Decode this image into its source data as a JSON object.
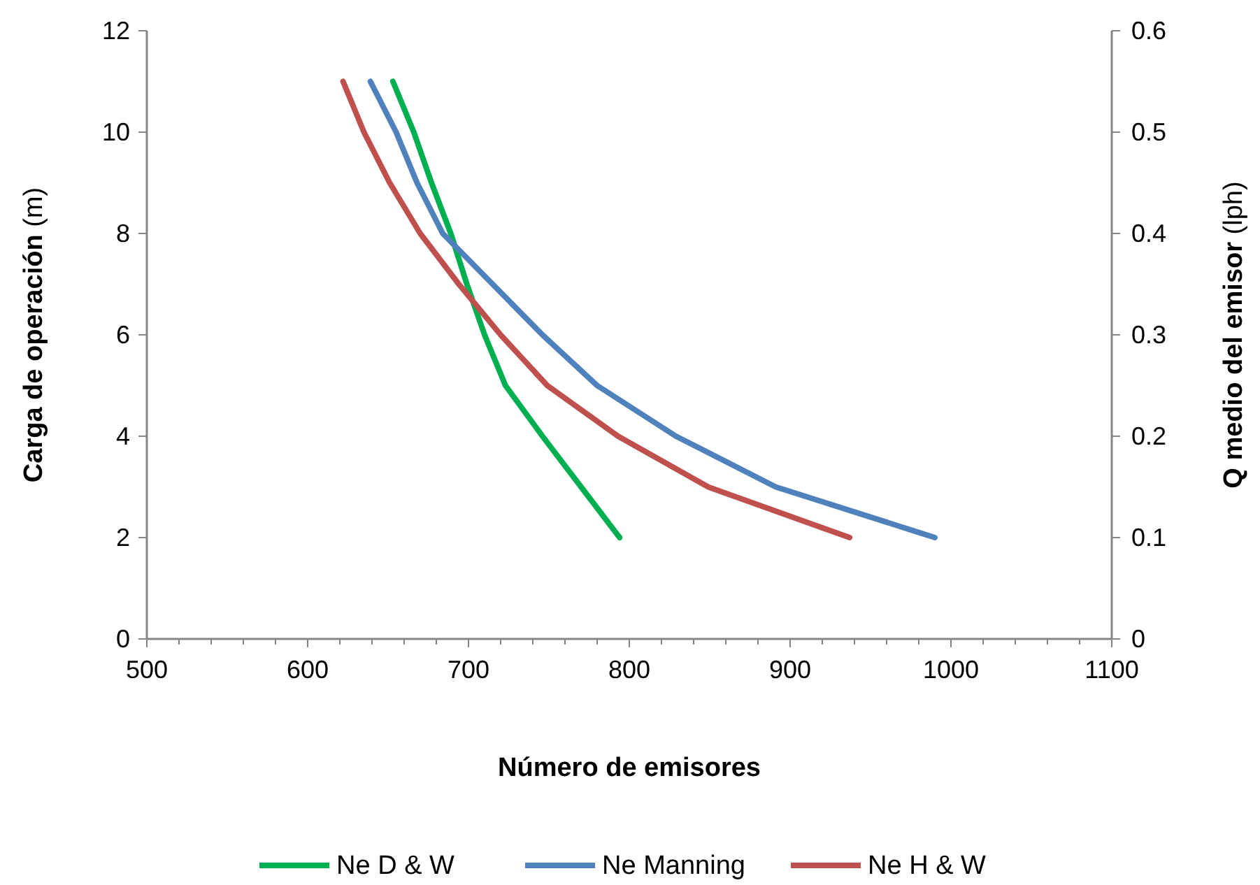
{
  "chart_data": {
    "type": "line",
    "xlabel": "Número de emisores",
    "ylabel": "Carga de operación (m)",
    "y2label": "Q medio del emisor (lph)",
    "xlim": [
      500,
      1100
    ],
    "xticks": [
      500,
      {
        "value": 520,
        "label": null
      },
      {
        "value": 540,
        "label": null
      },
      {
        "value": 560,
        "label": null
      },
      {
        "value": 580,
        "label": null
      },
      600,
      {
        "value": 620,
        "label": null
      },
      {
        "value": 640,
        "label": null
      },
      {
        "value": 660,
        "label": null
      },
      {
        "value": 680,
        "label": null
      },
      700,
      {
        "value": 720,
        "label": null
      },
      {
        "value": 740,
        "label": null
      },
      {
        "value": 760,
        "label": null
      },
      {
        "value": 780,
        "label": null
      },
      800,
      {
        "value": 820,
        "label": null
      },
      {
        "value": 840,
        "label": null
      },
      {
        "value": 860,
        "label": null
      },
      {
        "value": 880,
        "label": null
      },
      900,
      {
        "value": 920,
        "label": null
      },
      {
        "value": 940,
        "label": null
      },
      {
        "value": 960,
        "label": null
      },
      {
        "value": 980,
        "label": null
      },
      1000,
      {
        "value": 1020,
        "label": null
      },
      {
        "value": 1040,
        "label": null
      },
      {
        "value": 1060,
        "label": null
      },
      {
        "value": 1080,
        "label": null
      },
      1100
    ],
    "ylim": [
      0,
      12
    ],
    "yticks": [
      0,
      2,
      4,
      6,
      8,
      10,
      12
    ],
    "y2lim": [
      0,
      0.6
    ],
    "y2ticks": [
      0,
      0.1,
      0.2,
      0.3,
      0.4,
      0.5,
      0.6
    ],
    "grid": false,
    "legend": "bottom",
    "marker": "none",
    "line_style": "solid",
    "series": [
      {
        "name": "Ne D & W",
        "color": "#00b050",
        "x": [
          653,
          666,
          677,
          689,
          699,
          710,
          723,
          746,
          770,
          794
        ],
        "values": [
          11,
          10,
          9,
          8,
          7,
          6,
          5,
          4,
          3,
          2
        ]
      },
      {
        "name": "Ne Manning",
        "color": "#4f81bd",
        "x": [
          639,
          655,
          668,
          684,
          715,
          746,
          780,
          829,
          891,
          990
        ],
        "values": [
          11,
          10,
          9,
          8,
          7,
          6,
          5,
          4,
          3,
          2
        ]
      },
      {
        "name": "Ne H & W",
        "color": "#c0504d",
        "x": [
          622,
          635,
          651,
          670,
          694,
          720,
          749,
          793,
          849,
          937
        ],
        "values": [
          11,
          10,
          9,
          8,
          7,
          6,
          5,
          4,
          3,
          2
        ]
      }
    ]
  }
}
